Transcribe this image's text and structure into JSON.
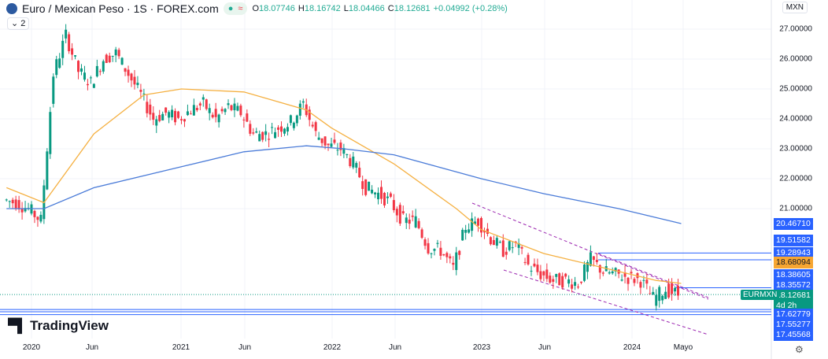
{
  "header": {
    "title": "Euro / Mexican Peso · 1S · FOREX.com",
    "status_dot": "●",
    "status_approx": "≈",
    "ohlc": {
      "o_label": "O",
      "o": "18.07746",
      "h_label": "H",
      "h": "18.16742",
      "l_label": "L",
      "l": "18.04466",
      "c_label": "C",
      "c": "18.12681",
      "change": "+0.04992 (+0.28%)"
    }
  },
  "indicators_toggle": "⌄ 2",
  "currency": "MXN",
  "symbol_tag": "EURMXN",
  "brand": "TradingView",
  "colors": {
    "up": "#089981",
    "down": "#f23645",
    "ma_fast": "#f5b041",
    "ma_slow": "#4a7bd8",
    "line": "#2962ff",
    "highlight": "#f7a631",
    "channel": "#9c27b0"
  },
  "chart_data": {
    "type": "candlestick",
    "ylim": [
      17.3,
      27.5
    ],
    "y_ticks": [
      "27.00000",
      "26.00000",
      "25.00000",
      "24.00000",
      "23.00000",
      "22.00000",
      "21.00000"
    ],
    "x_ticks": [
      "2020",
      "Jun",
      "2021",
      "Jun",
      "2022",
      "Jun",
      "2023",
      "Jun",
      "2024",
      "Mayo"
    ],
    "price_labels": [
      {
        "value": "20.46710",
        "color": "#2962ff"
      },
      {
        "value": "19.51582",
        "color": "#2962ff"
      },
      {
        "value": "19.28943",
        "color": "#2962ff"
      },
      {
        "value": "18.68094",
        "color": "#f7a631"
      },
      {
        "value": "18.38605",
        "color": "#2962ff"
      },
      {
        "value": "18.35572",
        "color": "#2962ff"
      },
      {
        "value": "18.12681",
        "color": "#089981",
        "sub": "4d 2h"
      },
      {
        "value": "17.62779",
        "color": "#2962ff"
      },
      {
        "value": "17.55277",
        "color": "#2962ff"
      },
      {
        "value": "17.45568",
        "color": "#2962ff"
      }
    ],
    "monthly_close": [
      [
        "2019-11",
        21.3
      ],
      [
        "2019-12",
        21.2
      ],
      [
        "2020-01",
        21.0
      ],
      [
        "2020-02",
        20.6
      ],
      [
        "2020-03",
        25.5
      ],
      [
        "2020-04",
        26.8
      ],
      [
        "2020-05",
        25.6
      ],
      [
        "2020-06",
        25.2
      ],
      [
        "2020-07",
        26.0
      ],
      [
        "2020-08",
        26.2
      ],
      [
        "2020-09",
        25.5
      ],
      [
        "2020-10",
        24.8
      ],
      [
        "2020-11",
        24.0
      ],
      [
        "2020-12",
        24.2
      ],
      [
        "2021-01",
        24.0
      ],
      [
        "2021-02",
        24.3
      ],
      [
        "2021-03",
        24.5
      ],
      [
        "2021-04",
        24.0
      ],
      [
        "2021-05",
        24.4
      ],
      [
        "2021-06",
        24.2
      ],
      [
        "2021-07",
        23.5
      ],
      [
        "2021-08",
        23.5
      ],
      [
        "2021-09",
        23.7
      ],
      [
        "2021-10",
        23.9
      ],
      [
        "2021-11",
        24.5
      ],
      [
        "2021-12",
        23.5
      ],
      [
        "2022-01",
        23.1
      ],
      [
        "2022-02",
        23.0
      ],
      [
        "2022-03",
        22.5
      ],
      [
        "2022-04",
        21.7
      ],
      [
        "2022-05",
        21.5
      ],
      [
        "2022-06",
        21.2
      ],
      [
        "2022-07",
        20.6
      ],
      [
        "2022-08",
        20.6
      ],
      [
        "2022-09",
        19.7
      ],
      [
        "2022-10",
        19.6
      ],
      [
        "2022-11",
        19.0
      ],
      [
        "2022-12",
        20.4
      ],
      [
        "2023-01",
        20.6
      ],
      [
        "2023-02",
        20.0
      ],
      [
        "2023-03",
        19.6
      ],
      [
        "2023-04",
        19.8
      ],
      [
        "2023-05",
        19.1
      ],
      [
        "2023-06",
        18.8
      ],
      [
        "2023-07",
        18.6
      ],
      [
        "2023-08",
        18.6
      ],
      [
        "2023-09",
        18.5
      ],
      [
        "2023-10",
        19.3
      ],
      [
        "2023-11",
        18.9
      ],
      [
        "2023-12",
        18.8
      ],
      [
        "2024-01",
        18.7
      ],
      [
        "2024-02",
        18.6
      ],
      [
        "2024-03",
        18.0
      ],
      [
        "2024-04",
        18.3
      ],
      [
        "2024-05",
        18.13
      ]
    ],
    "ma_fast": [
      [
        "2019-11",
        21.7
      ],
      [
        "2020-02",
        21.2
      ],
      [
        "2020-06",
        23.5
      ],
      [
        "2020-10",
        24.8
      ],
      [
        "2021-01",
        25.0
      ],
      [
        "2021-06",
        24.9
      ],
      [
        "2021-11",
        24.3
      ],
      [
        "2022-01",
        23.7
      ],
      [
        "2022-06",
        22.5
      ],
      [
        "2022-11",
        21.0
      ],
      [
        "2023-01",
        20.3
      ],
      [
        "2023-06",
        19.5
      ],
      [
        "2023-11",
        19.0
      ],
      [
        "2024-03",
        18.6
      ],
      [
        "2024-05",
        18.5
      ]
    ],
    "ma_slow": [
      [
        "2019-11",
        21.0
      ],
      [
        "2020-02",
        21.0
      ],
      [
        "2020-06",
        21.7
      ],
      [
        "2021-01",
        22.4
      ],
      [
        "2021-06",
        22.9
      ],
      [
        "2021-11",
        23.1
      ],
      [
        "2022-02",
        23.0
      ],
      [
        "2022-06",
        22.8
      ],
      [
        "2023-01",
        22.0
      ],
      [
        "2023-06",
        21.5
      ],
      [
        "2023-12",
        21.0
      ],
      [
        "2024-05",
        20.5
      ]
    ],
    "horizontal_lines": [
      19.51582,
      19.28943,
      18.35572,
      17.62779,
      17.55277,
      17.45568
    ]
  }
}
